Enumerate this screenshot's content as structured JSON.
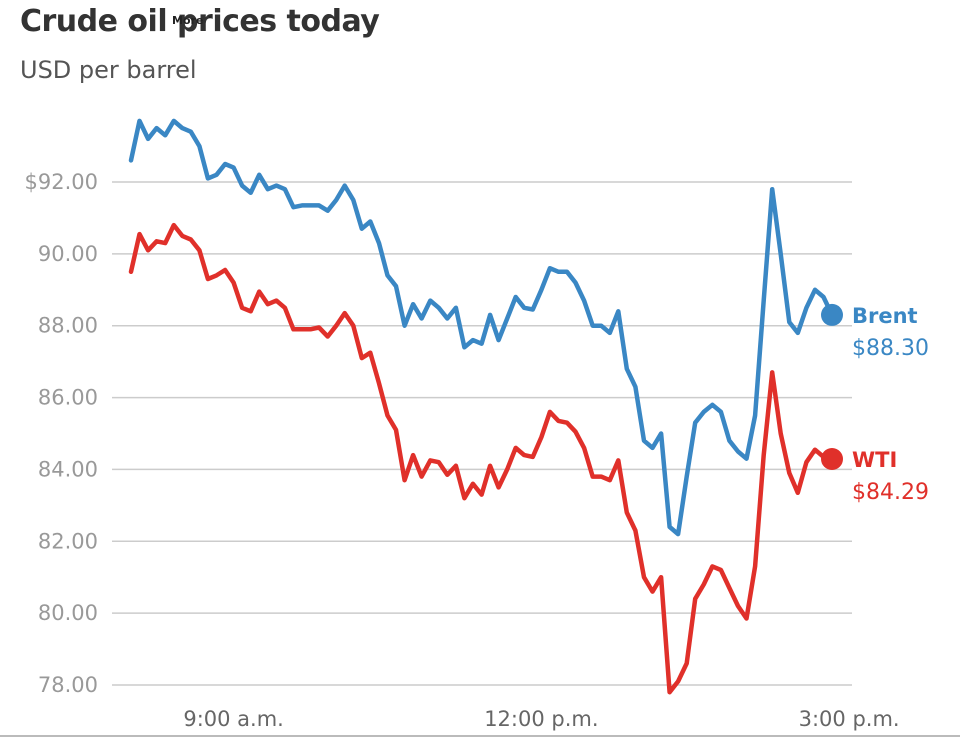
{
  "header": {
    "title": "Crude oil prices today",
    "more_label": "More ˅",
    "subtitle": "USD per barrel"
  },
  "colors": {
    "brent": "#3a87c4",
    "wti": "#e0302a",
    "grid": "#cccccc",
    "tick_text": "#999999"
  },
  "chart_data": {
    "type": "line",
    "title": "Crude oil prices today",
    "subtitle": "USD per barrel",
    "xlabel": "",
    "ylabel": "USD per barrel",
    "x_unit": "hours (24h clock)",
    "xlim": [
      8.1,
      15.1
    ],
    "ylim": [
      78,
      93
    ],
    "y_ticks": [
      78,
      80,
      82,
      84,
      86,
      88,
      90,
      92
    ],
    "y_tick_labels": [
      "78.00",
      "80.00",
      "82.00",
      "84.00",
      "86.00",
      "88.00",
      "90.00",
      "$92.00"
    ],
    "x_ticks": [
      9,
      12,
      15
    ],
    "x_tick_labels": [
      "9:00 a.m.",
      "12:00 p.m.",
      "3:00 p.m."
    ],
    "grid": true,
    "x": [
      8.0,
      8.083,
      8.167,
      8.25,
      8.333,
      8.417,
      8.5,
      8.583,
      8.667,
      8.75,
      8.833,
      8.917,
      9.0,
      9.083,
      9.167,
      9.25,
      9.333,
      9.417,
      9.5,
      9.583,
      9.667,
      9.75,
      9.833,
      9.917,
      10.0,
      10.083,
      10.167,
      10.25,
      10.333,
      10.417,
      10.5,
      10.583,
      10.667,
      10.75,
      10.833,
      10.917,
      11.0,
      11.083,
      11.167,
      11.25,
      11.333,
      11.417,
      11.5,
      11.583,
      11.667,
      11.75,
      11.833,
      11.917,
      12.0,
      12.083,
      12.167,
      12.25,
      12.333,
      12.417,
      12.5,
      12.583,
      12.667,
      12.75,
      12.833,
      12.917,
      13.0,
      13.083,
      13.167,
      13.25,
      13.333,
      13.417,
      13.5,
      13.583,
      13.667,
      13.75,
      13.833,
      13.917,
      14.0,
      14.083,
      14.167,
      14.25,
      14.333,
      14.417,
      14.5,
      14.583,
      14.667,
      14.75,
      14.833
    ],
    "series": [
      {
        "name": "Brent",
        "last_value_label": "$88.30",
        "values": [
          92.6,
          93.7,
          93.2,
          93.5,
          93.3,
          93.7,
          93.5,
          93.4,
          93.0,
          92.1,
          92.2,
          92.5,
          92.4,
          91.9,
          91.7,
          92.2,
          91.8,
          91.9,
          91.8,
          91.3,
          91.35,
          91.35,
          91.35,
          91.2,
          91.5,
          91.9,
          91.5,
          90.7,
          90.9,
          90.3,
          89.4,
          89.1,
          88.0,
          88.6,
          88.2,
          88.7,
          88.5,
          88.2,
          88.5,
          87.4,
          87.6,
          87.5,
          88.3,
          87.6,
          88.2,
          88.8,
          88.5,
          88.45,
          89.0,
          89.6,
          89.5,
          89.5,
          89.2,
          88.7,
          88.0,
          88.0,
          87.8,
          88.4,
          86.8,
          86.3,
          84.8,
          84.6,
          85.0,
          82.4,
          82.2,
          83.8,
          85.3,
          85.6,
          85.8,
          85.6,
          84.8,
          84.5,
          84.3,
          85.5,
          88.7,
          91.8,
          90.0,
          88.1,
          87.8,
          88.5,
          89.0,
          88.8,
          88.3
        ]
      },
      {
        "name": "WTI",
        "last_value_label": "$84.29",
        "values": [
          89.5,
          90.55,
          90.1,
          90.35,
          90.3,
          90.8,
          90.5,
          90.4,
          90.1,
          89.3,
          89.4,
          89.55,
          89.2,
          88.5,
          88.4,
          88.95,
          88.6,
          88.7,
          88.5,
          87.9,
          87.9,
          87.9,
          87.95,
          87.7,
          88.0,
          88.35,
          88.0,
          87.1,
          87.25,
          86.4,
          85.5,
          85.1,
          83.7,
          84.4,
          83.8,
          84.25,
          84.2,
          83.85,
          84.1,
          83.2,
          83.6,
          83.3,
          84.1,
          83.5,
          84.0,
          84.6,
          84.4,
          84.35,
          84.9,
          85.6,
          85.35,
          85.3,
          85.05,
          84.6,
          83.8,
          83.8,
          83.7,
          84.25,
          82.8,
          82.3,
          81.0,
          80.6,
          81.0,
          77.8,
          78.1,
          78.6,
          80.4,
          80.8,
          81.3,
          81.2,
          80.7,
          80.2,
          79.85,
          81.3,
          84.4,
          86.7,
          85.0,
          83.9,
          83.35,
          84.2,
          84.55,
          84.35,
          84.29
        ]
      }
    ]
  }
}
